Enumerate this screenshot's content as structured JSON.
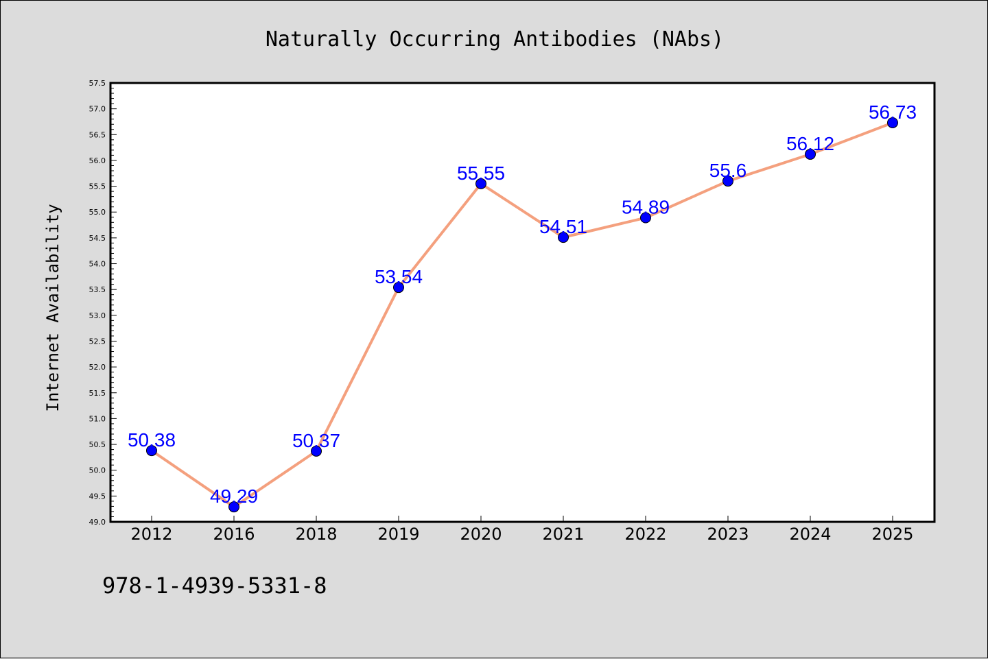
{
  "chart_data": {
    "type": "line",
    "title": "Naturally Occurring Antibodies (NAbs)",
    "xlabel": "",
    "ylabel": "Internet Availability",
    "categories": [
      "2012",
      "2016",
      "2018",
      "2019",
      "2020",
      "2021",
      "2022",
      "2023",
      "2024",
      "2025"
    ],
    "values": [
      50.38,
      49.29,
      50.37,
      53.54,
      55.55,
      54.51,
      54.89,
      55.6,
      56.12,
      56.73
    ],
    "data_labels": [
      "50.38",
      "49.29",
      "50.37",
      "53.54",
      "55.55",
      "54.51",
      "54.89",
      "55.6",
      "56.12",
      "56.73"
    ],
    "ylim": [
      49.0,
      57.5
    ],
    "yticks": [
      "49.0",
      "49.5",
      "50.0",
      "50.5",
      "51.0",
      "51.5",
      "52.0",
      "52.5",
      "53.0",
      "53.5",
      "54.0",
      "54.5",
      "55.0",
      "55.5",
      "56.0",
      "56.5",
      "57.0",
      "57.5"
    ],
    "grid": false,
    "line_color": "#f4a07e",
    "marker_color": "#0000ff",
    "label_color": "#0000ff"
  },
  "footer": {
    "isbn": "978-1-4939-5331-8"
  }
}
